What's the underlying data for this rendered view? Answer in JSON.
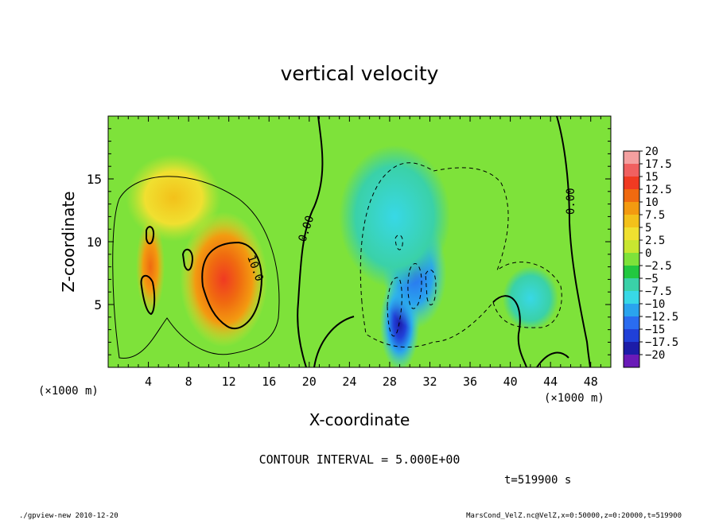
{
  "chart_data": {
    "type": "heatmap",
    "title": "vertical velocity",
    "xlabel": "X-coordinate",
    "ylabel": "Z-coordinate",
    "x_unit": "(×1000 m)",
    "z_unit": "(×1000 m)",
    "xlim": [
      0,
      50
    ],
    "zlim": [
      0,
      20
    ],
    "x_ticks": [
      4,
      8,
      12,
      16,
      20,
      24,
      28,
      32,
      36,
      40,
      44,
      48
    ],
    "z_ticks": [
      5,
      10,
      15
    ],
    "contour_interval_text": "CONTOUR INTERVAL = 5.000E+00",
    "time_text": "t=519900 s",
    "contour_labels": [
      "0.00",
      "10.0",
      "0.00"
    ],
    "colorbar": {
      "levels": [
        20,
        17.5,
        15,
        12.5,
        10,
        7.5,
        5,
        2.5,
        0,
        -2.5,
        -5,
        -7.5,
        -10,
        -12.5,
        -15,
        -17.5,
        -20
      ],
      "colors": [
        "#f4a0a0",
        "#f06060",
        "#f03a22",
        "#f06a10",
        "#f39a10",
        "#f3c11a",
        "#f0e030",
        "#c8e630",
        "#7ee23a",
        "#22c840",
        "#3ad1a8",
        "#38d8e6",
        "#2aa4ee",
        "#2a6cf0",
        "#2040d8",
        "#1c1ca8",
        "#6a1ab8"
      ],
      "labels": [
        "20",
        "17.5",
        "15",
        "12.5",
        "10",
        "7.5",
        "5",
        "2.5",
        "0",
        "−2.5",
        "−5",
        "−7.5",
        "−10",
        "−12.5",
        "−15",
        "−17.5",
        "−20"
      ]
    },
    "features": [
      {
        "kind": "updraft",
        "x": 11.5,
        "z": 7.0,
        "peak": 13.5
      },
      {
        "kind": "updraft",
        "x": 4.2,
        "z": 8.0,
        "peak": 10.0
      },
      {
        "kind": "updraft",
        "x": 6.5,
        "z": 13.5,
        "peak": 7.0
      },
      {
        "kind": "downdraft",
        "x": 29.0,
        "z": 3.5,
        "peak": -15.0
      },
      {
        "kind": "downdraft",
        "x": 30.5,
        "z": 7.5,
        "peak": -10.0
      },
      {
        "kind": "downdraft",
        "x": 28.5,
        "z": 12.0,
        "peak": -7.5
      },
      {
        "kind": "downdraft",
        "x": 42.0,
        "z": 5.5,
        "peak": -5.0
      }
    ]
  },
  "footer": {
    "left": "./gpview-new  2010-12-20",
    "right": "MarsCond_VelZ.nc@VelZ,x=0:50000,z=0:20000,t=519900"
  }
}
